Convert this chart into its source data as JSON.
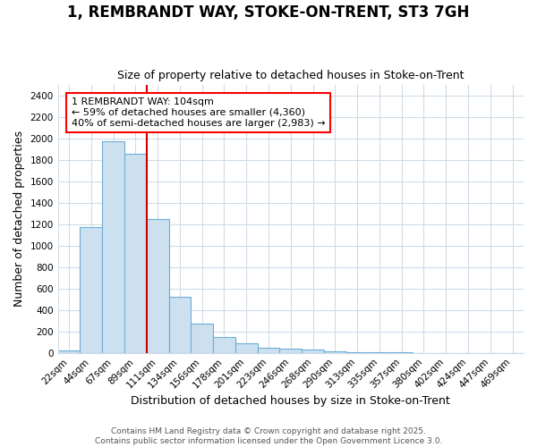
{
  "title_line1": "1, REMBRANDT WAY, STOKE-ON-TRENT, ST3 7GH",
  "title_line2": "Size of property relative to detached houses in Stoke-on-Trent",
  "xlabel": "Distribution of detached houses by size in Stoke-on-Trent",
  "ylabel": "Number of detached properties",
  "categories": [
    "22sqm",
    "44sqm",
    "67sqm",
    "89sqm",
    "111sqm",
    "134sqm",
    "156sqm",
    "178sqm",
    "201sqm",
    "223sqm",
    "246sqm",
    "268sqm",
    "290sqm",
    "313sqm",
    "335sqm",
    "357sqm",
    "380sqm",
    "402sqm",
    "424sqm",
    "447sqm",
    "469sqm"
  ],
  "values": [
    25,
    1175,
    1975,
    1860,
    1245,
    520,
    275,
    150,
    90,
    50,
    40,
    30,
    12,
    5,
    3,
    2,
    1,
    1,
    1,
    1,
    0
  ],
  "bar_color": "#cce0f0",
  "bar_edge_color": "#6aaed6",
  "vline_x_index": 4,
  "vline_color": "#cc0000",
  "annotation_line1": "1 REMBRANDT WAY: 104sqm",
  "annotation_line2": "← 59% of detached houses are smaller (4,360)",
  "annotation_line3": "40% of semi-detached houses are larger (2,983) →",
  "footer_line1": "Contains HM Land Registry data © Crown copyright and database right 2025.",
  "footer_line2": "Contains public sector information licensed under the Open Government Licence 3.0.",
  "ylim": [
    0,
    2500
  ],
  "yticks": [
    0,
    200,
    400,
    600,
    800,
    1000,
    1200,
    1400,
    1600,
    1800,
    2000,
    2200,
    2400
  ],
  "bg_color": "#ffffff",
  "grid_color": "#d0dce8",
  "title_fontsize": 12,
  "subtitle_fontsize": 9,
  "axis_label_fontsize": 9,
  "tick_fontsize": 7.5,
  "annotation_fontsize": 8,
  "footer_fontsize": 6.5
}
